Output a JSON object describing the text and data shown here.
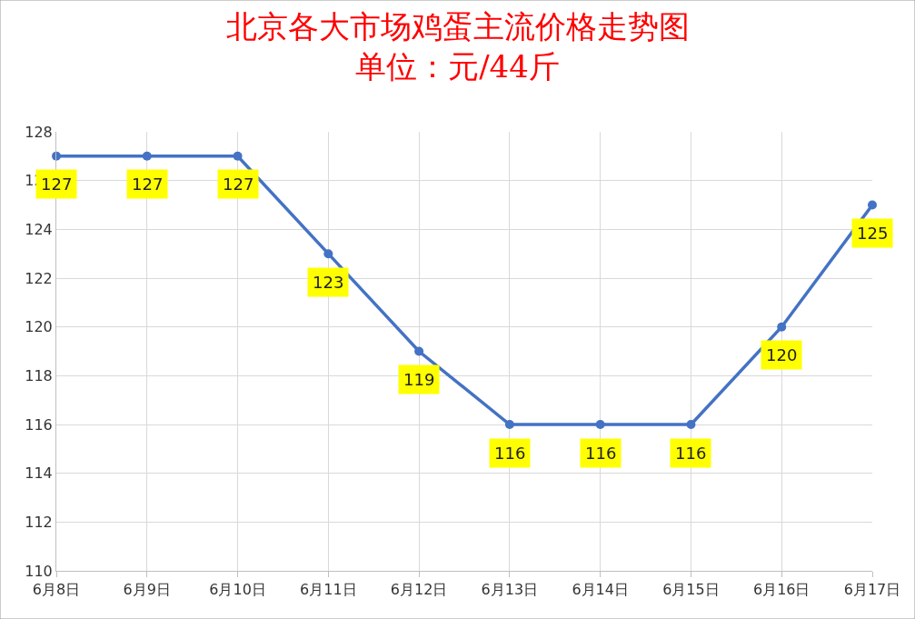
{
  "chart_data": {
    "type": "line",
    "title": "北京各大市场鸡蛋主流价格走势图",
    "subtitle": "单位：元/44斤",
    "categories": [
      "6月8日",
      "6月9日",
      "6月10日",
      "6月11日",
      "6月12日",
      "6月13日",
      "6月14日",
      "6月15日",
      "6月16日",
      "6月17日"
    ],
    "series": [
      {
        "color": "#4472c4",
        "values": [
          127,
          127,
          127,
          123,
          119,
          116,
          116,
          116,
          120,
          125
        ]
      }
    ],
    "ylim": [
      110,
      128
    ],
    "yticks": [
      110,
      112,
      114,
      116,
      118,
      120,
      122,
      124,
      126,
      128
    ],
    "grid": true,
    "marker": "circle",
    "line_style": "solid",
    "data_labels": true
  }
}
